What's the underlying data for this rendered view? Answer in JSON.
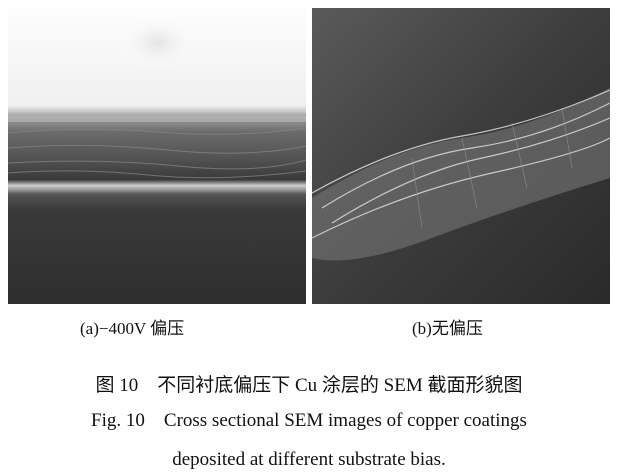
{
  "figure": {
    "panels": [
      {
        "label": "(a)−400V 偏压"
      },
      {
        "label": "(b)无偏压"
      }
    ],
    "caption_cn": "图 10    不同衬底偏压下 Cu 涂层的 SEM 截面形貌图",
    "caption_en_line1": "Fig. 10    Cross sectional SEM images of copper coatings",
    "caption_en_line2": "deposited at different substrate bias."
  }
}
